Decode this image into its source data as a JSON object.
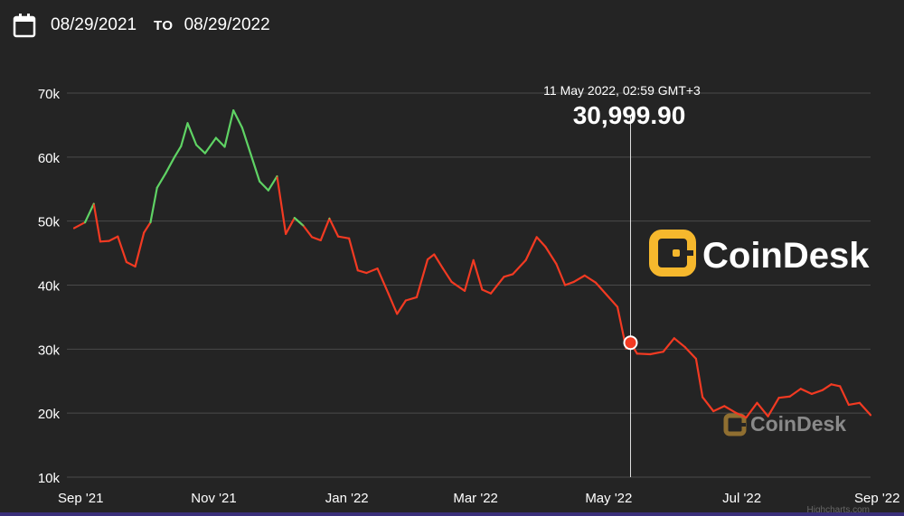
{
  "date_range": {
    "start": "08/29/2021",
    "to_label": "TO",
    "end": "08/29/2022"
  },
  "chart_data": {
    "type": "line",
    "y_ticks": [
      "70k",
      "60k",
      "50k",
      "40k",
      "30k",
      "20k",
      "10k"
    ],
    "x_ticks": [
      "Sep '21",
      "Nov '21",
      "Jan '22",
      "Mar '22",
      "May '22",
      "Jul '22",
      "Sep '22"
    ],
    "ylim": [
      10000,
      70000
    ],
    "grid": true,
    "colors": {
      "up": "#5fd364",
      "down": "#f23a22",
      "grid": "#4a4a4a",
      "crosshair": "#e0e0e0"
    },
    "tooltip": {
      "date": "11 May 2022, 02:59 GMT+3",
      "value": "30,999.90"
    },
    "watermark": "CoinDesk",
    "credit": "Highcharts.com",
    "series": [
      {
        "x": [
          "2021-08-29",
          "2021-09-03",
          "2021-09-07",
          "2021-09-10",
          "2021-09-14",
          "2021-09-18",
          "2021-09-22",
          "2021-09-26",
          "2021-09-30",
          "2021-10-03",
          "2021-10-06",
          "2021-10-10",
          "2021-10-14",
          "2021-10-17",
          "2021-10-20",
          "2021-10-24",
          "2021-10-28",
          "2021-11-02",
          "2021-11-06",
          "2021-11-10",
          "2021-11-14",
          "2021-11-18",
          "2021-11-22",
          "2021-11-26",
          "2021-11-30",
          "2021-12-04",
          "2021-12-08",
          "2021-12-12",
          "2021-12-16",
          "2021-12-20",
          "2021-12-24",
          "2021-12-28",
          "2022-01-02",
          "2022-01-06",
          "2022-01-10",
          "2022-01-15",
          "2022-01-20",
          "2022-01-24",
          "2022-01-28",
          "2022-02-02",
          "2022-02-07",
          "2022-02-10",
          "2022-02-14",
          "2022-02-18",
          "2022-02-24",
          "2022-02-28",
          "2022-03-04",
          "2022-03-08",
          "2022-03-14",
          "2022-03-18",
          "2022-03-24",
          "2022-03-29",
          "2022-04-02",
          "2022-04-07",
          "2022-04-11",
          "2022-04-15",
          "2022-04-20",
          "2022-04-25",
          "2022-04-30",
          "2022-05-05",
          "2022-05-09",
          "2022-05-11",
          "2022-05-14",
          "2022-05-20",
          "2022-05-26",
          "2022-05-31",
          "2022-06-05",
          "2022-06-10",
          "2022-06-13",
          "2022-06-18",
          "2022-06-23",
          "2022-06-28",
          "2022-07-03",
          "2022-07-08",
          "2022-07-13",
          "2022-07-18",
          "2022-07-23",
          "2022-07-28",
          "2022-08-02",
          "2022-08-07",
          "2022-08-11",
          "2022-08-15",
          "2022-08-19",
          "2022-08-24",
          "2022-08-29"
        ],
        "y": [
          48900,
          49800,
          52700,
          46800,
          46900,
          47600,
          43600,
          42900,
          48200,
          49800,
          55200,
          57500,
          60000,
          61700,
          65300,
          61900,
          60600,
          63000,
          61600,
          67300,
          64600,
          60400,
          56200,
          54800,
          57000,
          48000,
          50500,
          49300,
          47500,
          47000,
          50400,
          47600,
          47300,
          42300,
          41900,
          42600,
          38700,
          35500,
          37600,
          38100,
          44000,
          44800,
          42600,
          40500,
          39100,
          43900,
          39300,
          38700,
          41300,
          41700,
          43900,
          47500,
          46000,
          43300,
          40000,
          40500,
          41500,
          40400,
          38500,
          36600,
          30100,
          31000,
          29300,
          29200,
          29600,
          31700,
          30300,
          28500,
          22500,
          20300,
          21100,
          20100,
          19300,
          21600,
          19500,
          22400,
          22600,
          23800,
          23000,
          23600,
          24500,
          24200,
          21300,
          21600,
          19700
        ]
      }
    ]
  }
}
